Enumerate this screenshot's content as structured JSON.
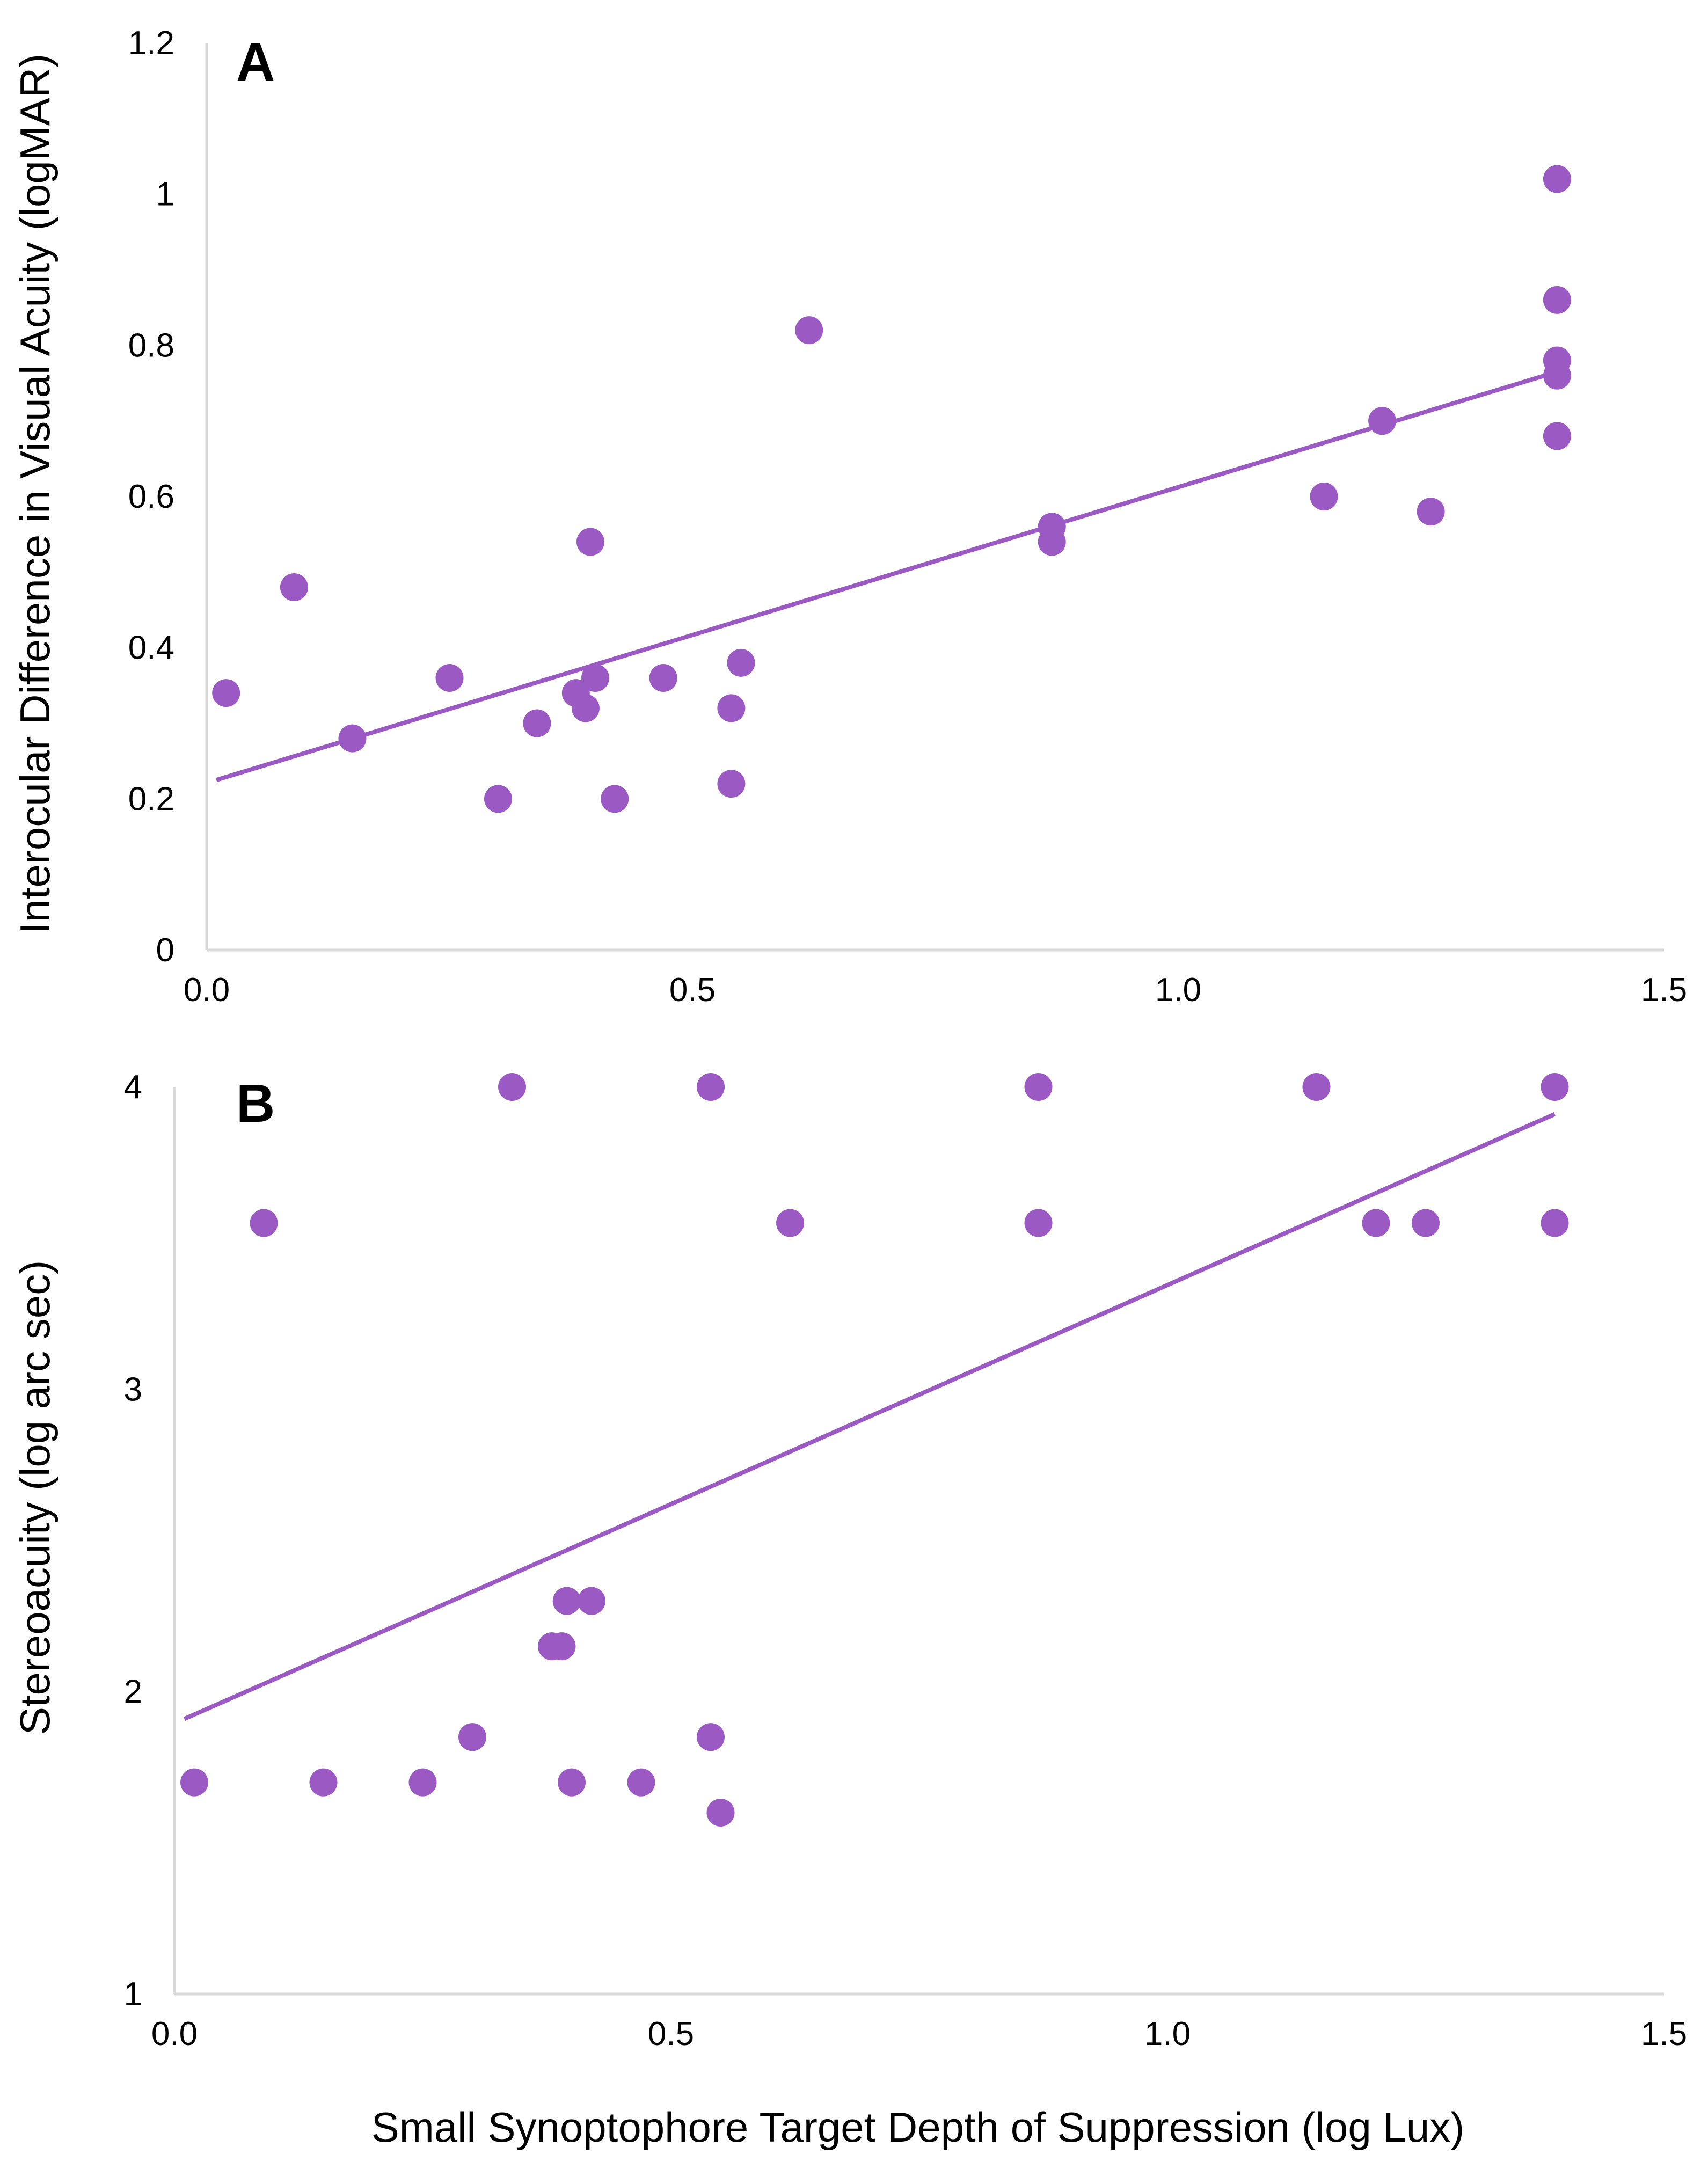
{
  "colors": {
    "marker": "#9B59C4",
    "trendline": "#9B59C4",
    "axis": "#D9D9D9"
  },
  "chart_data": [
    {
      "panel": "A",
      "type": "scatter",
      "xlabel": "",
      "ylabel": "Interocular Difference in Visual Acuity (logMAR)",
      "xlim": [
        0,
        1.5
      ],
      "ylim": [
        0,
        1.2
      ],
      "x_ticks": [
        "0.0",
        "0.5",
        "1.0",
        "1.5"
      ],
      "y_ticks": [
        "0",
        "0.2",
        "0.4",
        "0.6",
        "0.8",
        "1",
        "1.2"
      ],
      "trendline": {
        "x": [
          0.01,
          1.39
        ],
        "y": [
          0.225,
          0.765
        ]
      },
      "points": [
        {
          "x": 0.02,
          "y": 0.34
        },
        {
          "x": 0.09,
          "y": 0.48
        },
        {
          "x": 0.15,
          "y": 0.28
        },
        {
          "x": 0.25,
          "y": 0.36
        },
        {
          "x": 0.3,
          "y": 0.2
        },
        {
          "x": 0.34,
          "y": 0.3
        },
        {
          "x": 0.38,
          "y": 0.34
        },
        {
          "x": 0.39,
          "y": 0.32
        },
        {
          "x": 0.395,
          "y": 0.54
        },
        {
          "x": 0.4,
          "y": 0.36
        },
        {
          "x": 0.42,
          "y": 0.2
        },
        {
          "x": 0.47,
          "y": 0.36
        },
        {
          "x": 0.54,
          "y": 0.32
        },
        {
          "x": 0.54,
          "y": 0.22
        },
        {
          "x": 0.55,
          "y": 0.38
        },
        {
          "x": 0.62,
          "y": 0.82
        },
        {
          "x": 0.87,
          "y": 0.56
        },
        {
          "x": 0.87,
          "y": 0.54
        },
        {
          "x": 1.15,
          "y": 0.6
        },
        {
          "x": 1.21,
          "y": 0.7
        },
        {
          "x": 1.26,
          "y": 0.58
        },
        {
          "x": 1.39,
          "y": 1.02
        },
        {
          "x": 1.39,
          "y": 0.86
        },
        {
          "x": 1.39,
          "y": 0.78
        },
        {
          "x": 1.39,
          "y": 0.76
        },
        {
          "x": 1.39,
          "y": 0.68
        }
      ]
    },
    {
      "panel": "B",
      "type": "scatter",
      "xlabel": "Small Synoptophore Target Depth of Suppression (log Lux)",
      "ylabel": "Stereoacuity (log arc sec)",
      "xlim": [
        0,
        1.5
      ],
      "ylim": [
        1,
        4
      ],
      "x_ticks": [
        "0.0",
        "0.5",
        "1.0",
        "1.5"
      ],
      "y_ticks": [
        "1",
        "2",
        "3",
        "4"
      ],
      "trendline": {
        "x": [
          0.01,
          1.39
        ],
        "y": [
          1.91,
          3.91
        ]
      },
      "points": [
        {
          "x": 0.02,
          "y": 1.7
        },
        {
          "x": 0.09,
          "y": 3.55
        },
        {
          "x": 0.15,
          "y": 1.7
        },
        {
          "x": 0.25,
          "y": 1.7
        },
        {
          "x": 0.3,
          "y": 1.85
        },
        {
          "x": 0.34,
          "y": 4.0
        },
        {
          "x": 0.38,
          "y": 2.15
        },
        {
          "x": 0.39,
          "y": 2.15
        },
        {
          "x": 0.395,
          "y": 2.3
        },
        {
          "x": 0.4,
          "y": 1.7
        },
        {
          "x": 0.42,
          "y": 2.3
        },
        {
          "x": 0.47,
          "y": 1.7
        },
        {
          "x": 0.54,
          "y": 4.0
        },
        {
          "x": 0.54,
          "y": 1.85
        },
        {
          "x": 0.55,
          "y": 1.6
        },
        {
          "x": 0.62,
          "y": 3.55
        },
        {
          "x": 0.87,
          "y": 4.0
        },
        {
          "x": 0.87,
          "y": 3.55
        },
        {
          "x": 1.15,
          "y": 4.0
        },
        {
          "x": 1.21,
          "y": 3.55
        },
        {
          "x": 1.26,
          "y": 3.55
        },
        {
          "x": 1.39,
          "y": 4.0
        },
        {
          "x": 1.39,
          "y": 3.55
        }
      ]
    }
  ]
}
